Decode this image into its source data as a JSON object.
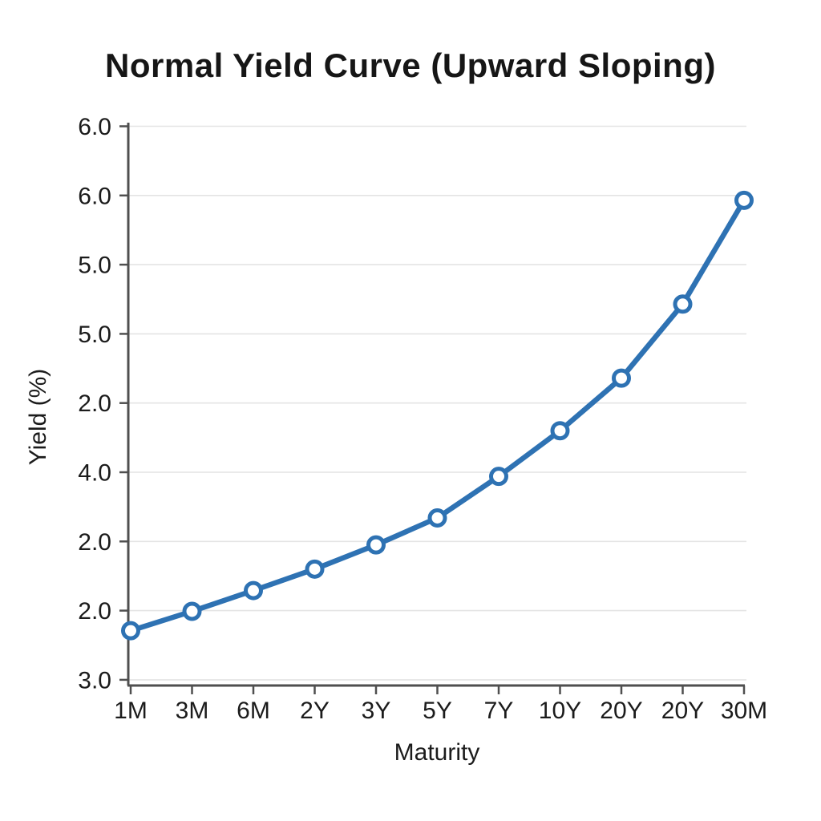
{
  "chart_data": {
    "type": "line",
    "title": "Normal Yield Curve (Upward Sloping)",
    "xlabel": "Maturity",
    "ylabel": "Yield (%)",
    "x_tick_labels": [
      "1M",
      "3M",
      "6M",
      "2Y",
      "3Y",
      "5Y",
      "7Y",
      "10Y",
      "20Y",
      "20Y",
      "30M"
    ],
    "y_tick_labels_top_to_bottom": [
      "6.0",
      "6.0",
      "5.0",
      "5.0",
      "2.0",
      "4.0",
      "2.0",
      "2.0",
      "3.0"
    ],
    "grid": "horizontal-only",
    "legend": "none",
    "series": [
      {
        "name": "yield-curve",
        "marker": "open-circle",
        "points": [
          {
            "x": "1M",
            "y_units_above_bottom_tick": 0.71
          },
          {
            "x": "3M",
            "y_units_above_bottom_tick": 0.99
          },
          {
            "x": "6M",
            "y_units_above_bottom_tick": 1.29
          },
          {
            "x": "2Y",
            "y_units_above_bottom_tick": 1.6
          },
          {
            "x": "3Y",
            "y_units_above_bottom_tick": 1.95
          },
          {
            "x": "5Y",
            "y_units_above_bottom_tick": 2.34
          },
          {
            "x": "7Y",
            "y_units_above_bottom_tick": 2.94
          },
          {
            "x": "10Y",
            "y_units_above_bottom_tick": 3.6
          },
          {
            "x": "20Y",
            "y_units_above_bottom_tick": 4.36
          },
          {
            "x": "20Y",
            "y_units_above_bottom_tick": 5.43
          },
          {
            "x": "30M",
            "y_units_above_bottom_tick": 6.93
          }
        ]
      }
    ]
  },
  "colors": {
    "line": "#2e72b3",
    "marker_fill": "#ffffff",
    "axis": "#4f4f4f",
    "grid": "#e4e4e4",
    "text": "#1b1b1b",
    "background": "#ffffff"
  }
}
